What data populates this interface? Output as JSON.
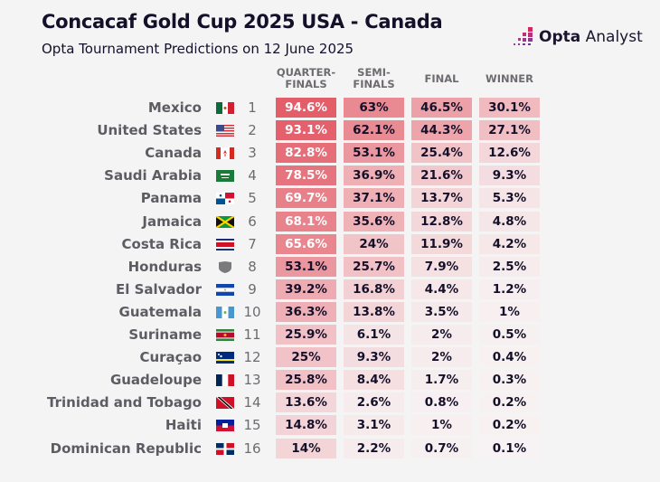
{
  "header": {
    "title": "Concacaf Gold Cup 2025 USA - Canada",
    "subtitle": "Opta Tournament Predictions on 12 June 2025",
    "logo_bold": "Opta",
    "logo_light": " Analyst"
  },
  "colors": {
    "heat_high": "#e35a66",
    "heat_low": "#f7f2f3",
    "text_dark": "#14102a",
    "text_light": "#ffffff",
    "logo_accent": "#d0285a"
  },
  "chart_data": {
    "type": "table",
    "title": "Concacaf Gold Cup 2025 USA - Canada",
    "subtitle": "Opta Tournament Predictions on 12 June 2025",
    "columns": [
      "QUARTER-\nFINALS",
      "SEMI-\nFINALS",
      "FINAL",
      "WINNER"
    ],
    "column_labels": [
      [
        "QUARTER-",
        "FINALS"
      ],
      [
        "SEMI-",
        "FINALS"
      ],
      [
        "FINAL"
      ],
      [
        "WINNER"
      ]
    ],
    "rows": [
      {
        "rank": 1,
        "team": "Mexico",
        "flag": "mexico-flag",
        "values": [
          94.6,
          63,
          46.5,
          30.1
        ],
        "labels": [
          "94.6%",
          "63%",
          "46.5%",
          "30.1%"
        ]
      },
      {
        "rank": 2,
        "team": "United States",
        "flag": "usa-flag",
        "values": [
          93.1,
          62.1,
          44.3,
          27.1
        ],
        "labels": [
          "93.1%",
          "62.1%",
          "44.3%",
          "27.1%"
        ]
      },
      {
        "rank": 3,
        "team": "Canada",
        "flag": "canada-flag",
        "values": [
          82.8,
          53.1,
          25.4,
          12.6
        ],
        "labels": [
          "82.8%",
          "53.1%",
          "25.4%",
          "12.6%"
        ]
      },
      {
        "rank": 4,
        "team": "Saudi Arabia",
        "flag": "saudi-arabia-flag",
        "values": [
          78.5,
          36.9,
          21.6,
          9.3
        ],
        "labels": [
          "78.5%",
          "36.9%",
          "21.6%",
          "9.3%"
        ]
      },
      {
        "rank": 5,
        "team": "Panama",
        "flag": "panama-flag",
        "values": [
          69.7,
          37.1,
          13.7,
          5.3
        ],
        "labels": [
          "69.7%",
          "37.1%",
          "13.7%",
          "5.3%"
        ]
      },
      {
        "rank": 6,
        "team": "Jamaica",
        "flag": "jamaica-flag",
        "values": [
          68.1,
          35.6,
          12.8,
          4.8
        ],
        "labels": [
          "68.1%",
          "35.6%",
          "12.8%",
          "4.8%"
        ]
      },
      {
        "rank": 7,
        "team": "Costa Rica",
        "flag": "costa-rica-flag",
        "values": [
          65.6,
          24,
          11.9,
          4.2
        ],
        "labels": [
          "65.6%",
          "24%",
          "11.9%",
          "4.2%"
        ]
      },
      {
        "rank": 8,
        "team": "Honduras",
        "flag": "honduras-shield",
        "values": [
          53.1,
          25.7,
          7.9,
          2.5
        ],
        "labels": [
          "53.1%",
          "25.7%",
          "7.9%",
          "2.5%"
        ]
      },
      {
        "rank": 9,
        "team": "El Salvador",
        "flag": "el-salvador-flag",
        "values": [
          39.2,
          16.8,
          4.4,
          1.2
        ],
        "labels": [
          "39.2%",
          "16.8%",
          "4.4%",
          "1.2%"
        ]
      },
      {
        "rank": 10,
        "team": "Guatemala",
        "flag": "guatemala-flag",
        "values": [
          36.3,
          13.8,
          3.5,
          1
        ],
        "labels": [
          "36.3%",
          "13.8%",
          "3.5%",
          "1%"
        ]
      },
      {
        "rank": 11,
        "team": "Suriname",
        "flag": "suriname-flag",
        "values": [
          25.9,
          6.1,
          2,
          0.5
        ],
        "labels": [
          "25.9%",
          "6.1%",
          "2%",
          "0.5%"
        ]
      },
      {
        "rank": 12,
        "team": "Curaçao",
        "flag": "curacao-flag",
        "values": [
          25,
          9.3,
          2,
          0.4
        ],
        "labels": [
          "25%",
          "9.3%",
          "2%",
          "0.4%"
        ]
      },
      {
        "rank": 13,
        "team": "Guadeloupe",
        "flag": "guadeloupe-flag",
        "values": [
          25.8,
          8.4,
          1.7,
          0.3
        ],
        "labels": [
          "25.8%",
          "8.4%",
          "1.7%",
          "0.3%"
        ]
      },
      {
        "rank": 14,
        "team": "Trinidad and Tobago",
        "flag": "trinidad-and-tobago-flag",
        "values": [
          13.6,
          2.6,
          0.8,
          0.2
        ],
        "labels": [
          "13.6%",
          "2.6%",
          "0.8%",
          "0.2%"
        ]
      },
      {
        "rank": 15,
        "team": "Haiti",
        "flag": "haiti-flag",
        "values": [
          14.8,
          3.1,
          1,
          0.2
        ],
        "labels": [
          "14.8%",
          "3.1%",
          "1%",
          "0.2%"
        ]
      },
      {
        "rank": 16,
        "team": "Dominican Republic",
        "flag": "dominican-republic-flag",
        "values": [
          14,
          2.2,
          0.7,
          0.1
        ],
        "labels": [
          "14%",
          "2.2%",
          "0.7%",
          "0.1%"
        ]
      }
    ],
    "unit": "%",
    "value_range": [
      0,
      100
    ]
  }
}
